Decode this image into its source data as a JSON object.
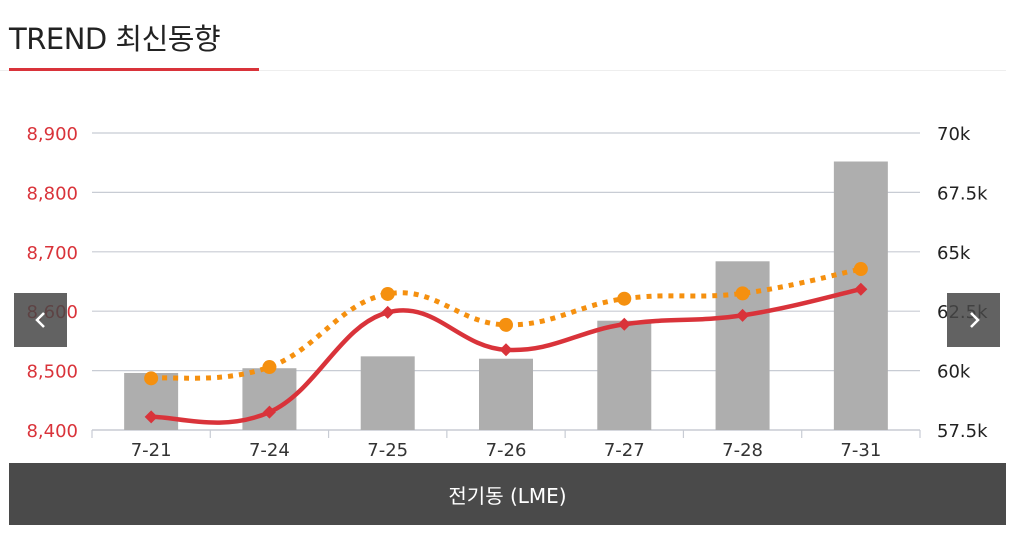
{
  "header": {
    "title": "TREND 최신동향"
  },
  "caption": "전기동 (LME)",
  "nav": {
    "prev_icon": "chevron-left-icon",
    "next_icon": "chevron-right-icon"
  },
  "colors": {
    "accent": "#d9333a",
    "bars": "#aeaeae",
    "dotted_line": "#f5900f",
    "left_axis_text": "#d9333a",
    "right_axis_text": "#222222",
    "grid": "#c8ccd4",
    "caption_bg": "#4a4a4a"
  },
  "chart_data": {
    "type": "bar",
    "categories": [
      "7-21",
      "7-24",
      "7-25",
      "7-26",
      "7-27",
      "7-28",
      "7-31"
    ],
    "y_left": {
      "ylim": [
        8400,
        8900
      ],
      "ticks": [
        "8,400",
        "8,500",
        "8,600",
        "8,700",
        "8,800",
        "8,900"
      ]
    },
    "y_right": {
      "ylim": [
        57.5,
        70
      ],
      "ticks": [
        "57.5k",
        "60k",
        "62.5k",
        "65k",
        "67.5k",
        "70k"
      ]
    },
    "series": [
      {
        "type": "bar",
        "axis": "right",
        "values": [
          59.9,
          60.1,
          60.6,
          60.5,
          62.1,
          64.6,
          68.8
        ]
      },
      {
        "type": "line",
        "axis": "left",
        "style": "solid",
        "marker": "diamond",
        "values": [
          8422,
          8430,
          8598,
          8535,
          8578,
          8593,
          8637
        ]
      },
      {
        "type": "line",
        "axis": "left",
        "style": "dotted",
        "marker": "circle",
        "values": [
          8487,
          8506,
          8629,
          8577,
          8621,
          8630,
          8671
        ]
      }
    ],
    "grid": true,
    "legend": "none"
  }
}
